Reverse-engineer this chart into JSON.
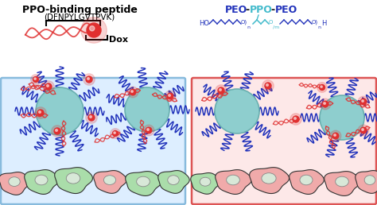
{
  "left_panel_bg": "#ddeeff",
  "right_panel_bg": "#fde8e8",
  "left_box_edge": "#88bbdd",
  "right_box_edge": "#dd5555",
  "ppo_text_bold": "PPO-binding peptide",
  "ppo_subtext": "(DFNPYLGVTPVK)",
  "dox_text": "Dox",
  "micelle_color": "#8ecece",
  "micelle_edge": "#6ab0b0",
  "peptide_color": "#e03030",
  "chain_color": "#2233bb",
  "cell_green": "#77cc77",
  "cell_green_face": "#aaddaa",
  "cell_pink": "#dd7777",
  "cell_pink_face": "#f0aaaa",
  "cell_edge": "#333333",
  "nucleus_color": "#ccddcc",
  "background": "#ffffff",
  "peo_color": "#2233bb",
  "ppo_color": "#44bbcc"
}
